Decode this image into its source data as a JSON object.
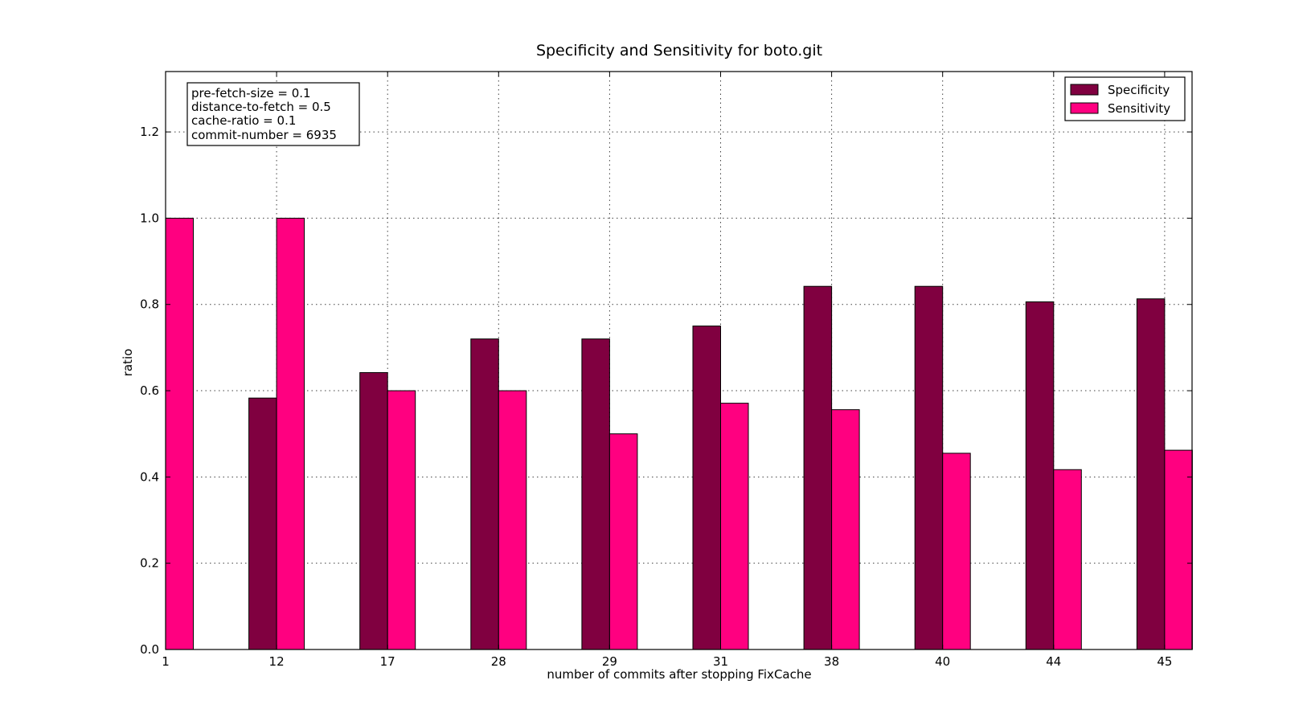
{
  "chart_data": {
    "type": "bar",
    "title": "Specificity and Sensitivity for boto.git",
    "xlabel": "number of commits after stopping FixCache",
    "ylabel": "ratio",
    "categories": [
      "1",
      "12",
      "17",
      "28",
      "29",
      "31",
      "38",
      "40",
      "44",
      "45"
    ],
    "series": [
      {
        "name": "Specificity",
        "color": "#800040",
        "values": [
          0.0,
          0.583,
          0.642,
          0.72,
          0.72,
          0.75,
          0.842,
          0.842,
          0.806,
          0.813
        ]
      },
      {
        "name": "Sensitivity",
        "color": "#ff0080",
        "values": [
          1.0,
          1.0,
          0.6,
          0.6,
          0.5,
          0.571,
          0.556,
          0.455,
          0.417,
          0.462
        ]
      }
    ],
    "ylim": [
      0.0,
      1.34
    ],
    "yticks": [
      "0.0",
      "0.2",
      "0.4",
      "0.6",
      "0.8",
      "1.0",
      "1.2"
    ],
    "grid": true,
    "legend": "top-right",
    "annotation": [
      "pre-fetch-size = 0.1",
      "distance-to-fetch = 0.5",
      "cache-ratio = 0.1",
      "commit-number = 6935"
    ]
  }
}
